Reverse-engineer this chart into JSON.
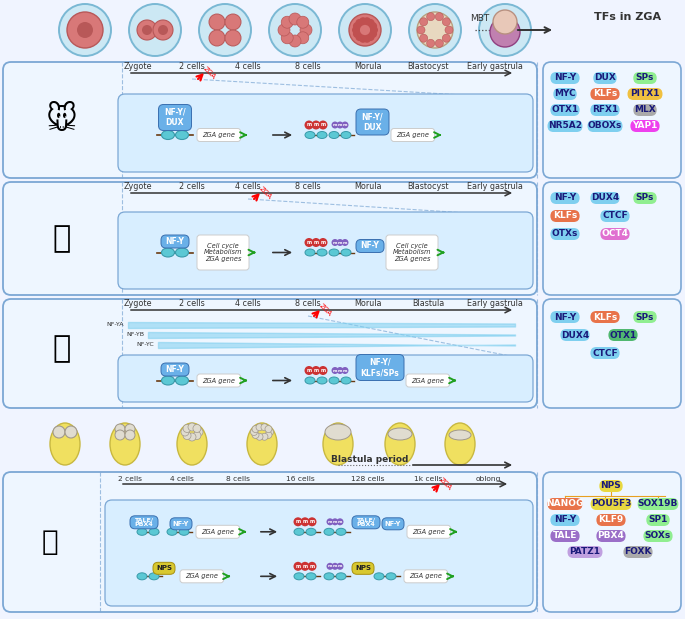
{
  "bg_color": "#f0f4ff",
  "tfs_in_zga_title": "TFs in ZGA",
  "mouse_tfs": [
    {
      "label": "NF-Y",
      "color": "#7ecfef",
      "tc": "#1a1a7a"
    },
    {
      "label": "DUX",
      "color": "#7ecfef",
      "tc": "#1a1a7a"
    },
    {
      "label": "SPs",
      "color": "#90ee90",
      "tc": "#1a1a7a"
    },
    {
      "label": "MYC",
      "color": "#7ecfef",
      "tc": "#1a1a7a"
    },
    {
      "label": "KLFs",
      "color": "#e8734a",
      "tc": "#ffffff"
    },
    {
      "label": "PITX1",
      "color": "#f0c040",
      "tc": "#1a1a7a"
    },
    {
      "label": "OTX1",
      "color": "#7ecfef",
      "tc": "#1a1a7a"
    },
    {
      "label": "RFX1",
      "color": "#7ecfef",
      "tc": "#1a1a7a"
    },
    {
      "label": "MLX",
      "color": "#aaaaaa",
      "tc": "#1a1a7a"
    },
    {
      "label": "NR5A2",
      "color": "#7ecfef",
      "tc": "#1a1a7a"
    },
    {
      "label": "OBOXs",
      "color": "#7ecfef",
      "tc": "#1a1a7a"
    },
    {
      "label": "YAP1",
      "color": "#ee40ee",
      "tc": "#ffffff"
    }
  ],
  "human_tfs": [
    {
      "label": "NF-Y",
      "color": "#7ecfef",
      "tc": "#1a1a7a"
    },
    {
      "label": "DUX4",
      "color": "#7ecfef",
      "tc": "#1a1a7a"
    },
    {
      "label": "SPs",
      "color": "#90ee90",
      "tc": "#1a1a7a"
    },
    {
      "label": "KLFs",
      "color": "#e8734a",
      "tc": "#ffffff"
    },
    {
      "label": "CTCF",
      "color": "#7ecfef",
      "tc": "#1a1a7a"
    },
    {
      "label": "OTXs",
      "color": "#7ecfef",
      "tc": "#1a1a7a"
    },
    {
      "label": "OCT4",
      "color": "#e070d0",
      "tc": "#ffffff"
    }
  ],
  "cow_tfs": [
    {
      "label": "NF-Y",
      "color": "#7ecfef",
      "tc": "#1a1a7a"
    },
    {
      "label": "KLFs",
      "color": "#e8734a",
      "tc": "#ffffff"
    },
    {
      "label": "SPs",
      "color": "#90ee90",
      "tc": "#1a1a7a"
    },
    {
      "label": "DUX4",
      "color": "#7ecfef",
      "tc": "#1a1a7a"
    },
    {
      "label": "OTX1",
      "color": "#50b870",
      "tc": "#1a1a7a"
    },
    {
      "label": "CTCF",
      "color": "#7ecfef",
      "tc": "#1a1a7a"
    }
  ],
  "zf_tfs": [
    {
      "label": "NPS",
      "color": "#e8d840",
      "tc": "#1a1a7a"
    },
    {
      "label": "NANOG",
      "color": "#e8734a",
      "tc": "#ffffff"
    },
    {
      "label": "POU5F3",
      "color": "#e8d840",
      "tc": "#1a1a7a"
    },
    {
      "label": "SOX19B",
      "color": "#90ee90",
      "tc": "#1a1a7a"
    },
    {
      "label": "NF-Y",
      "color": "#7ecfef",
      "tc": "#1a1a7a"
    },
    {
      "label": "KLF9",
      "color": "#e8734a",
      "tc": "#ffffff"
    },
    {
      "label": "SP1",
      "color": "#90ee90",
      "tc": "#1a1a7a"
    },
    {
      "label": "TALE",
      "color": "#9b6fc8",
      "tc": "#ffffff"
    },
    {
      "label": "PBX4",
      "color": "#9b6fc8",
      "tc": "#ffffff"
    },
    {
      "label": "SOXs",
      "color": "#90ee90",
      "tc": "#1a1a7a"
    },
    {
      "label": "PATZ1",
      "color": "#c0a0e0",
      "tc": "#1a1a7a"
    },
    {
      "label": "FOXK",
      "color": "#aaaaaa",
      "tc": "#1a1a7a"
    }
  ],
  "mouse_stages": [
    "Zygote",
    "2 cells",
    "4 cells",
    "8 cells",
    "Morula",
    "Blastocyst",
    "Early gastrula"
  ],
  "cow_stages": [
    "Zygote",
    "2 cells",
    "4 cells",
    "8 cells",
    "Morula",
    "Blastula",
    "Early gastrula"
  ],
  "zf_stages": [
    "2 cells",
    "4 cells",
    "8 cells",
    "16 cells",
    "128 cells",
    "1k cells",
    "oblong"
  ]
}
